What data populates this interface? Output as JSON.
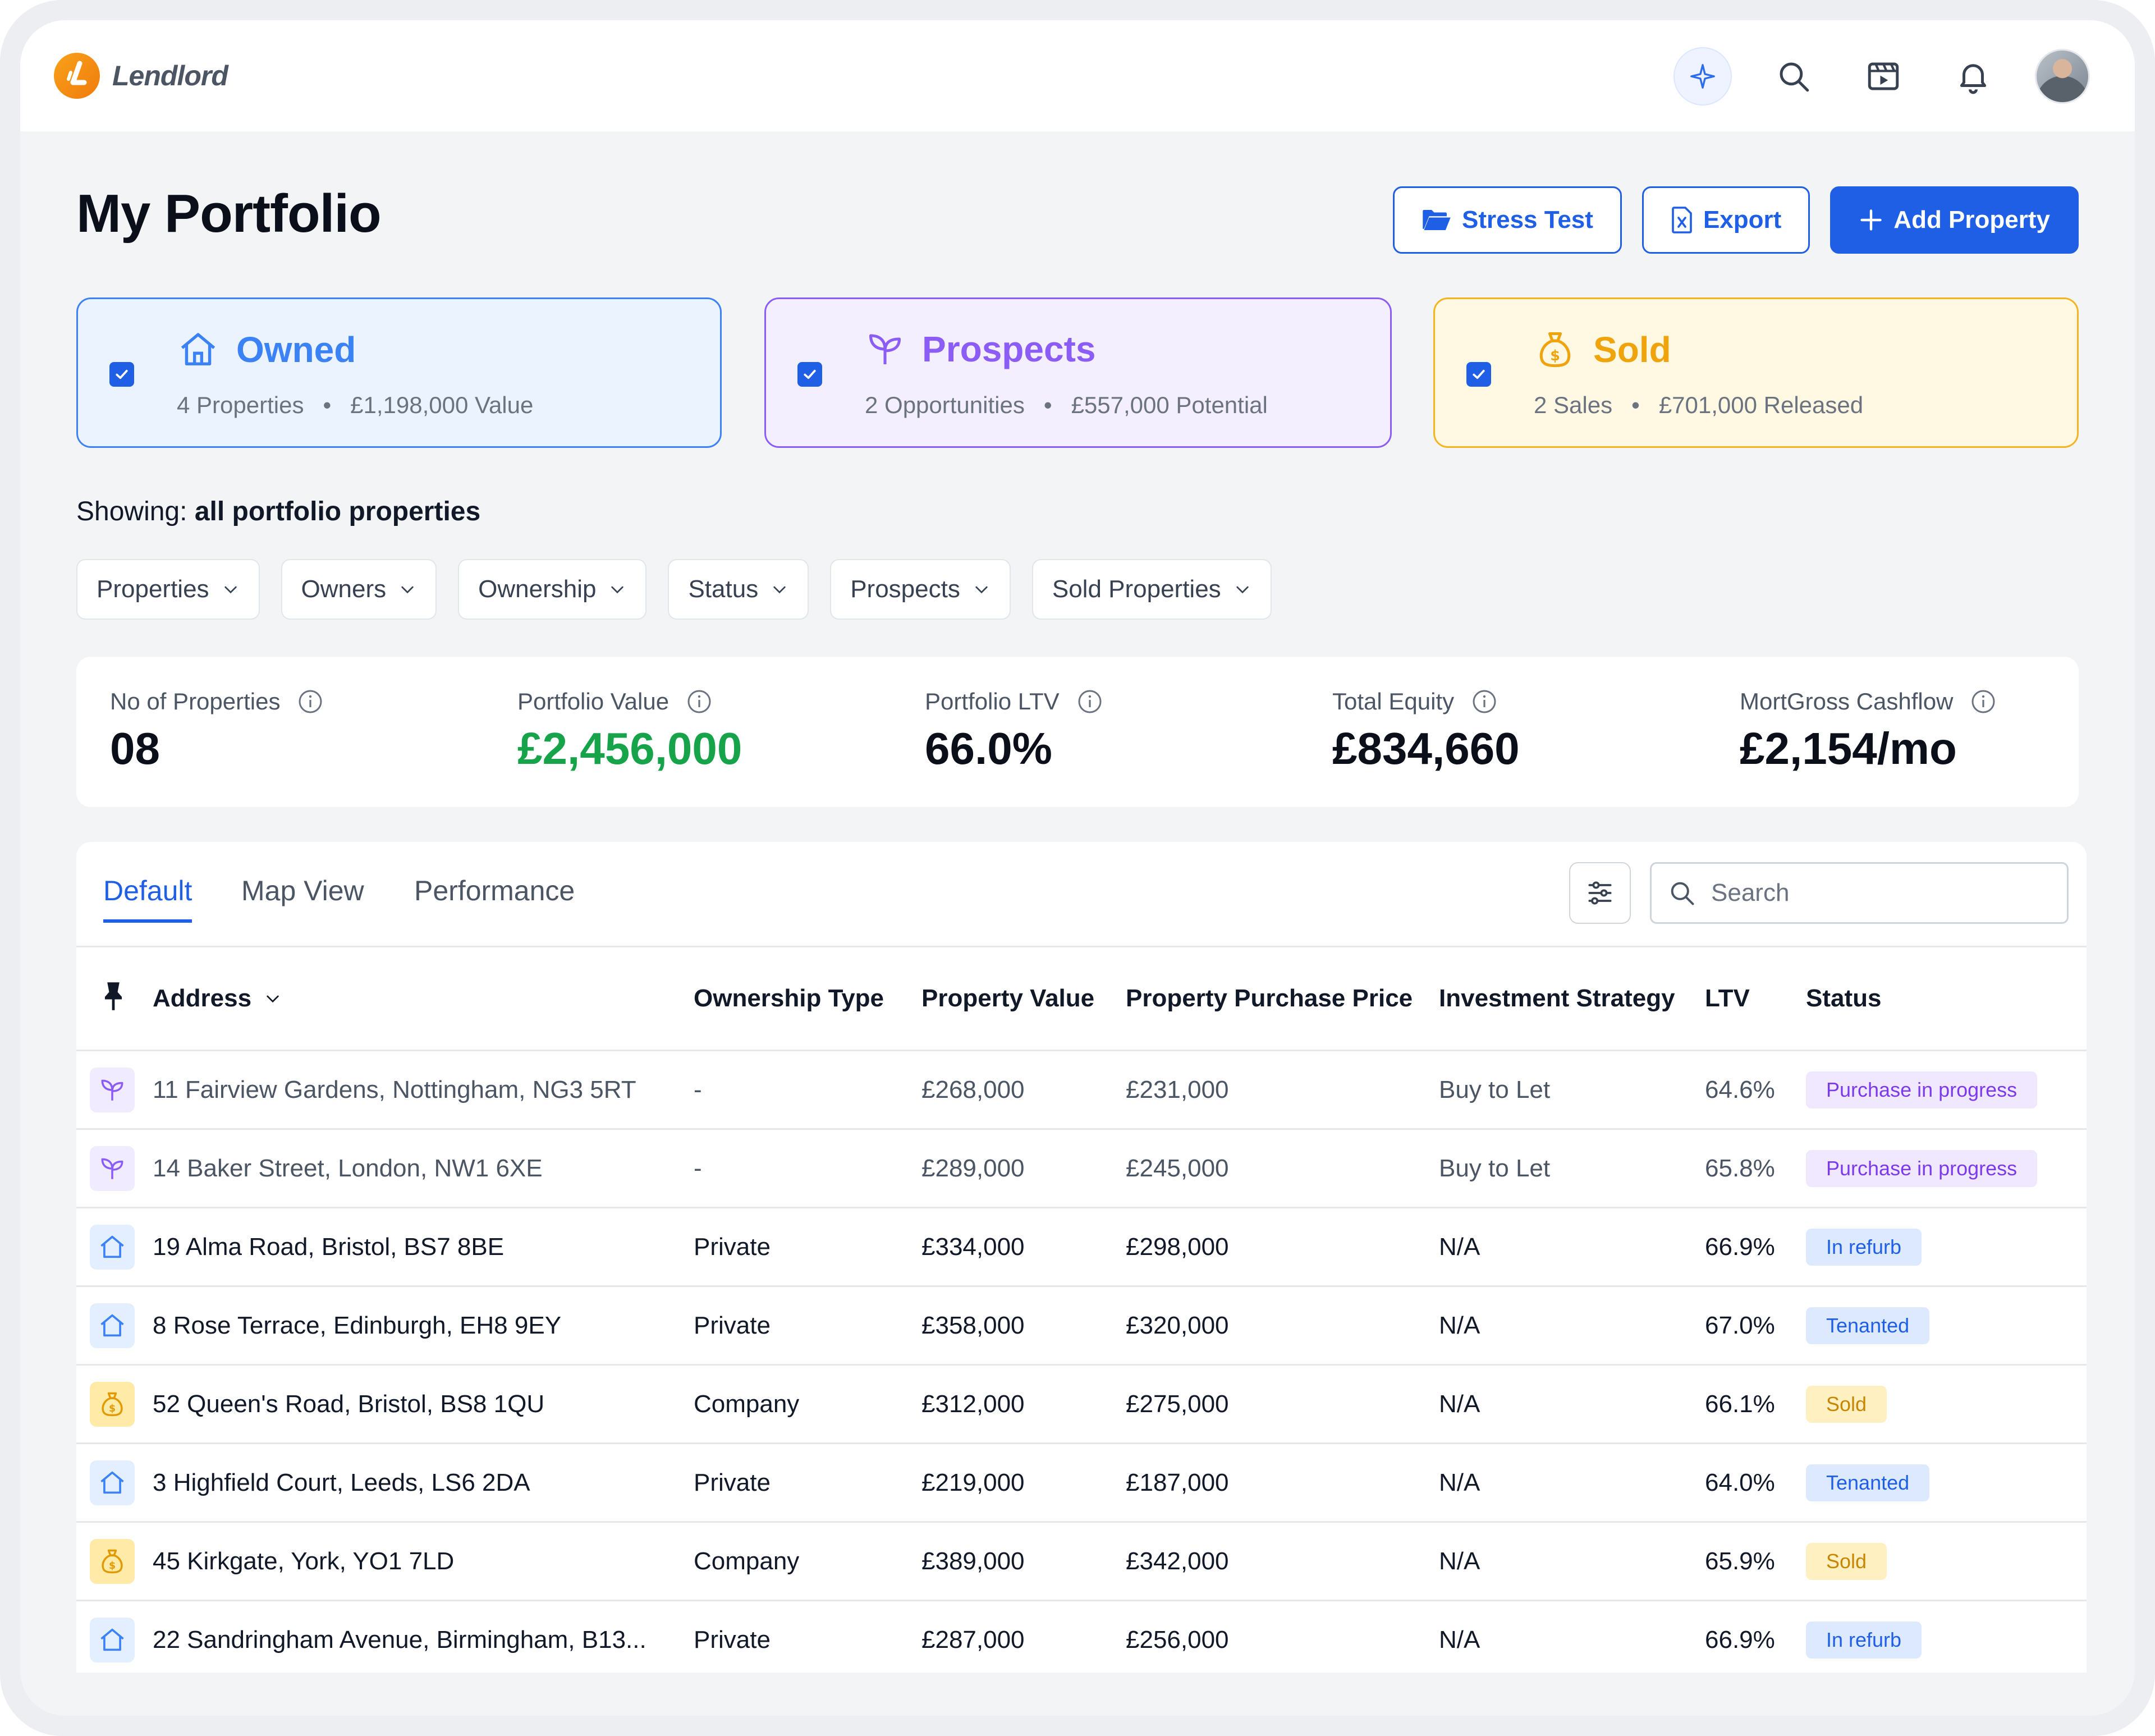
{
  "app": {
    "name": "Lendlord"
  },
  "page": {
    "title": "My Portfolio"
  },
  "actions": {
    "stress_test": "Stress Test",
    "export": "Export",
    "add_property": "Add Property"
  },
  "categories": {
    "owned": {
      "title": "Owned",
      "count": "4 Properties",
      "amount": "£1,198,000 Value",
      "checked": true
    },
    "prospects": {
      "title": "Prospects",
      "count": "2 Opportunities",
      "amount": "£557,000 Potential",
      "checked": true
    },
    "sold": {
      "title": "Sold",
      "count": "2 Sales",
      "amount": "£701,000 Released",
      "checked": true
    }
  },
  "showing": {
    "prefix": "Showing:",
    "value": "all portfolio properties"
  },
  "filters": [
    "Properties",
    "Owners",
    "Ownership",
    "Status",
    "Prospects",
    "Sold Properties"
  ],
  "stats": [
    {
      "label": "No of Properties",
      "value": "08"
    },
    {
      "label": "Portfolio Value",
      "value": "£2,456,000"
    },
    {
      "label": "Portfolio LTV",
      "value": "66.0%"
    },
    {
      "label": "Total Equity",
      "value": "£834,660"
    },
    {
      "label": "MortGross Cashflow",
      "value": "£2,154/mo"
    }
  ],
  "tabs": [
    "Default",
    "Map View",
    "Performance"
  ],
  "search": {
    "placeholder": "Search",
    "value": ""
  },
  "table": {
    "columns": [
      "Address",
      "Ownership Type",
      "Property Value",
      "Property Purchase Price",
      "Investment Strategy",
      "LTV",
      "Status"
    ],
    "rows": [
      {
        "type": "prospect",
        "address": "11 Fairview Gardens, Nottingham, NG3 5RT",
        "ownership": "-",
        "value": "£268,000",
        "purchase": "£231,000",
        "strategy": "Buy to Let",
        "ltv": "64.6%",
        "status": "Purchase in progress",
        "status_color": "purple"
      },
      {
        "type": "prospect",
        "address": "14 Baker Street, London, NW1 6XE",
        "ownership": "-",
        "value": "£289,000",
        "purchase": "£245,000",
        "strategy": "Buy to Let",
        "ltv": "65.8%",
        "status": "Purchase in progress",
        "status_color": "purple"
      },
      {
        "type": "owned",
        "address": "19 Alma Road, Bristol, BS7 8BE",
        "ownership": "Private",
        "value": "£334,000",
        "purchase": "£298,000",
        "strategy": "N/A",
        "ltv": "66.9%",
        "status": "In refurb",
        "status_color": "blue"
      },
      {
        "type": "owned",
        "address": "8 Rose Terrace, Edinburgh, EH8 9EY",
        "ownership": "Private",
        "value": "£358,000",
        "purchase": "£320,000",
        "strategy": "N/A",
        "ltv": "67.0%",
        "status": "Tenanted",
        "status_color": "blue"
      },
      {
        "type": "sold",
        "address": "52 Queen's Road, Bristol, BS8 1QU",
        "ownership": "Company",
        "value": "£312,000",
        "purchase": "£275,000",
        "strategy": "N/A",
        "ltv": "66.1%",
        "status": "Sold",
        "status_color": "amber"
      },
      {
        "type": "owned",
        "address": "3 Highfield Court, Leeds, LS6 2DA",
        "ownership": "Private",
        "value": "£219,000",
        "purchase": "£187,000",
        "strategy": "N/A",
        "ltv": "64.0%",
        "status": "Tenanted",
        "status_color": "blue"
      },
      {
        "type": "sold",
        "address": "45 Kirkgate, York, YO1 7LD",
        "ownership": "Company",
        "value": "£389,000",
        "purchase": "£342,000",
        "strategy": "N/A",
        "ltv": "65.9%",
        "status": "Sold",
        "status_color": "amber"
      },
      {
        "type": "owned",
        "address": "22 Sandringham Avenue, Birmingham, B13...",
        "ownership": "Private",
        "value": "£287,000",
        "purchase": "£256,000",
        "strategy": "N/A",
        "ltv": "66.9%",
        "status": "In refurb",
        "status_color": "blue"
      }
    ]
  },
  "colors": {
    "primary": "#1f5fe6",
    "owned": "#3b82f6",
    "prospects": "#8b5cf6",
    "sold": "#f0a40c",
    "value_green": "#16a34a"
  },
  "icons": {
    "header": [
      "sparkle-icon",
      "search-icon",
      "video-icon",
      "bell-icon"
    ],
    "row_prospect": "sprout-icon",
    "row_owned": "house-icon",
    "row_sold": "money-bag-icon"
  }
}
